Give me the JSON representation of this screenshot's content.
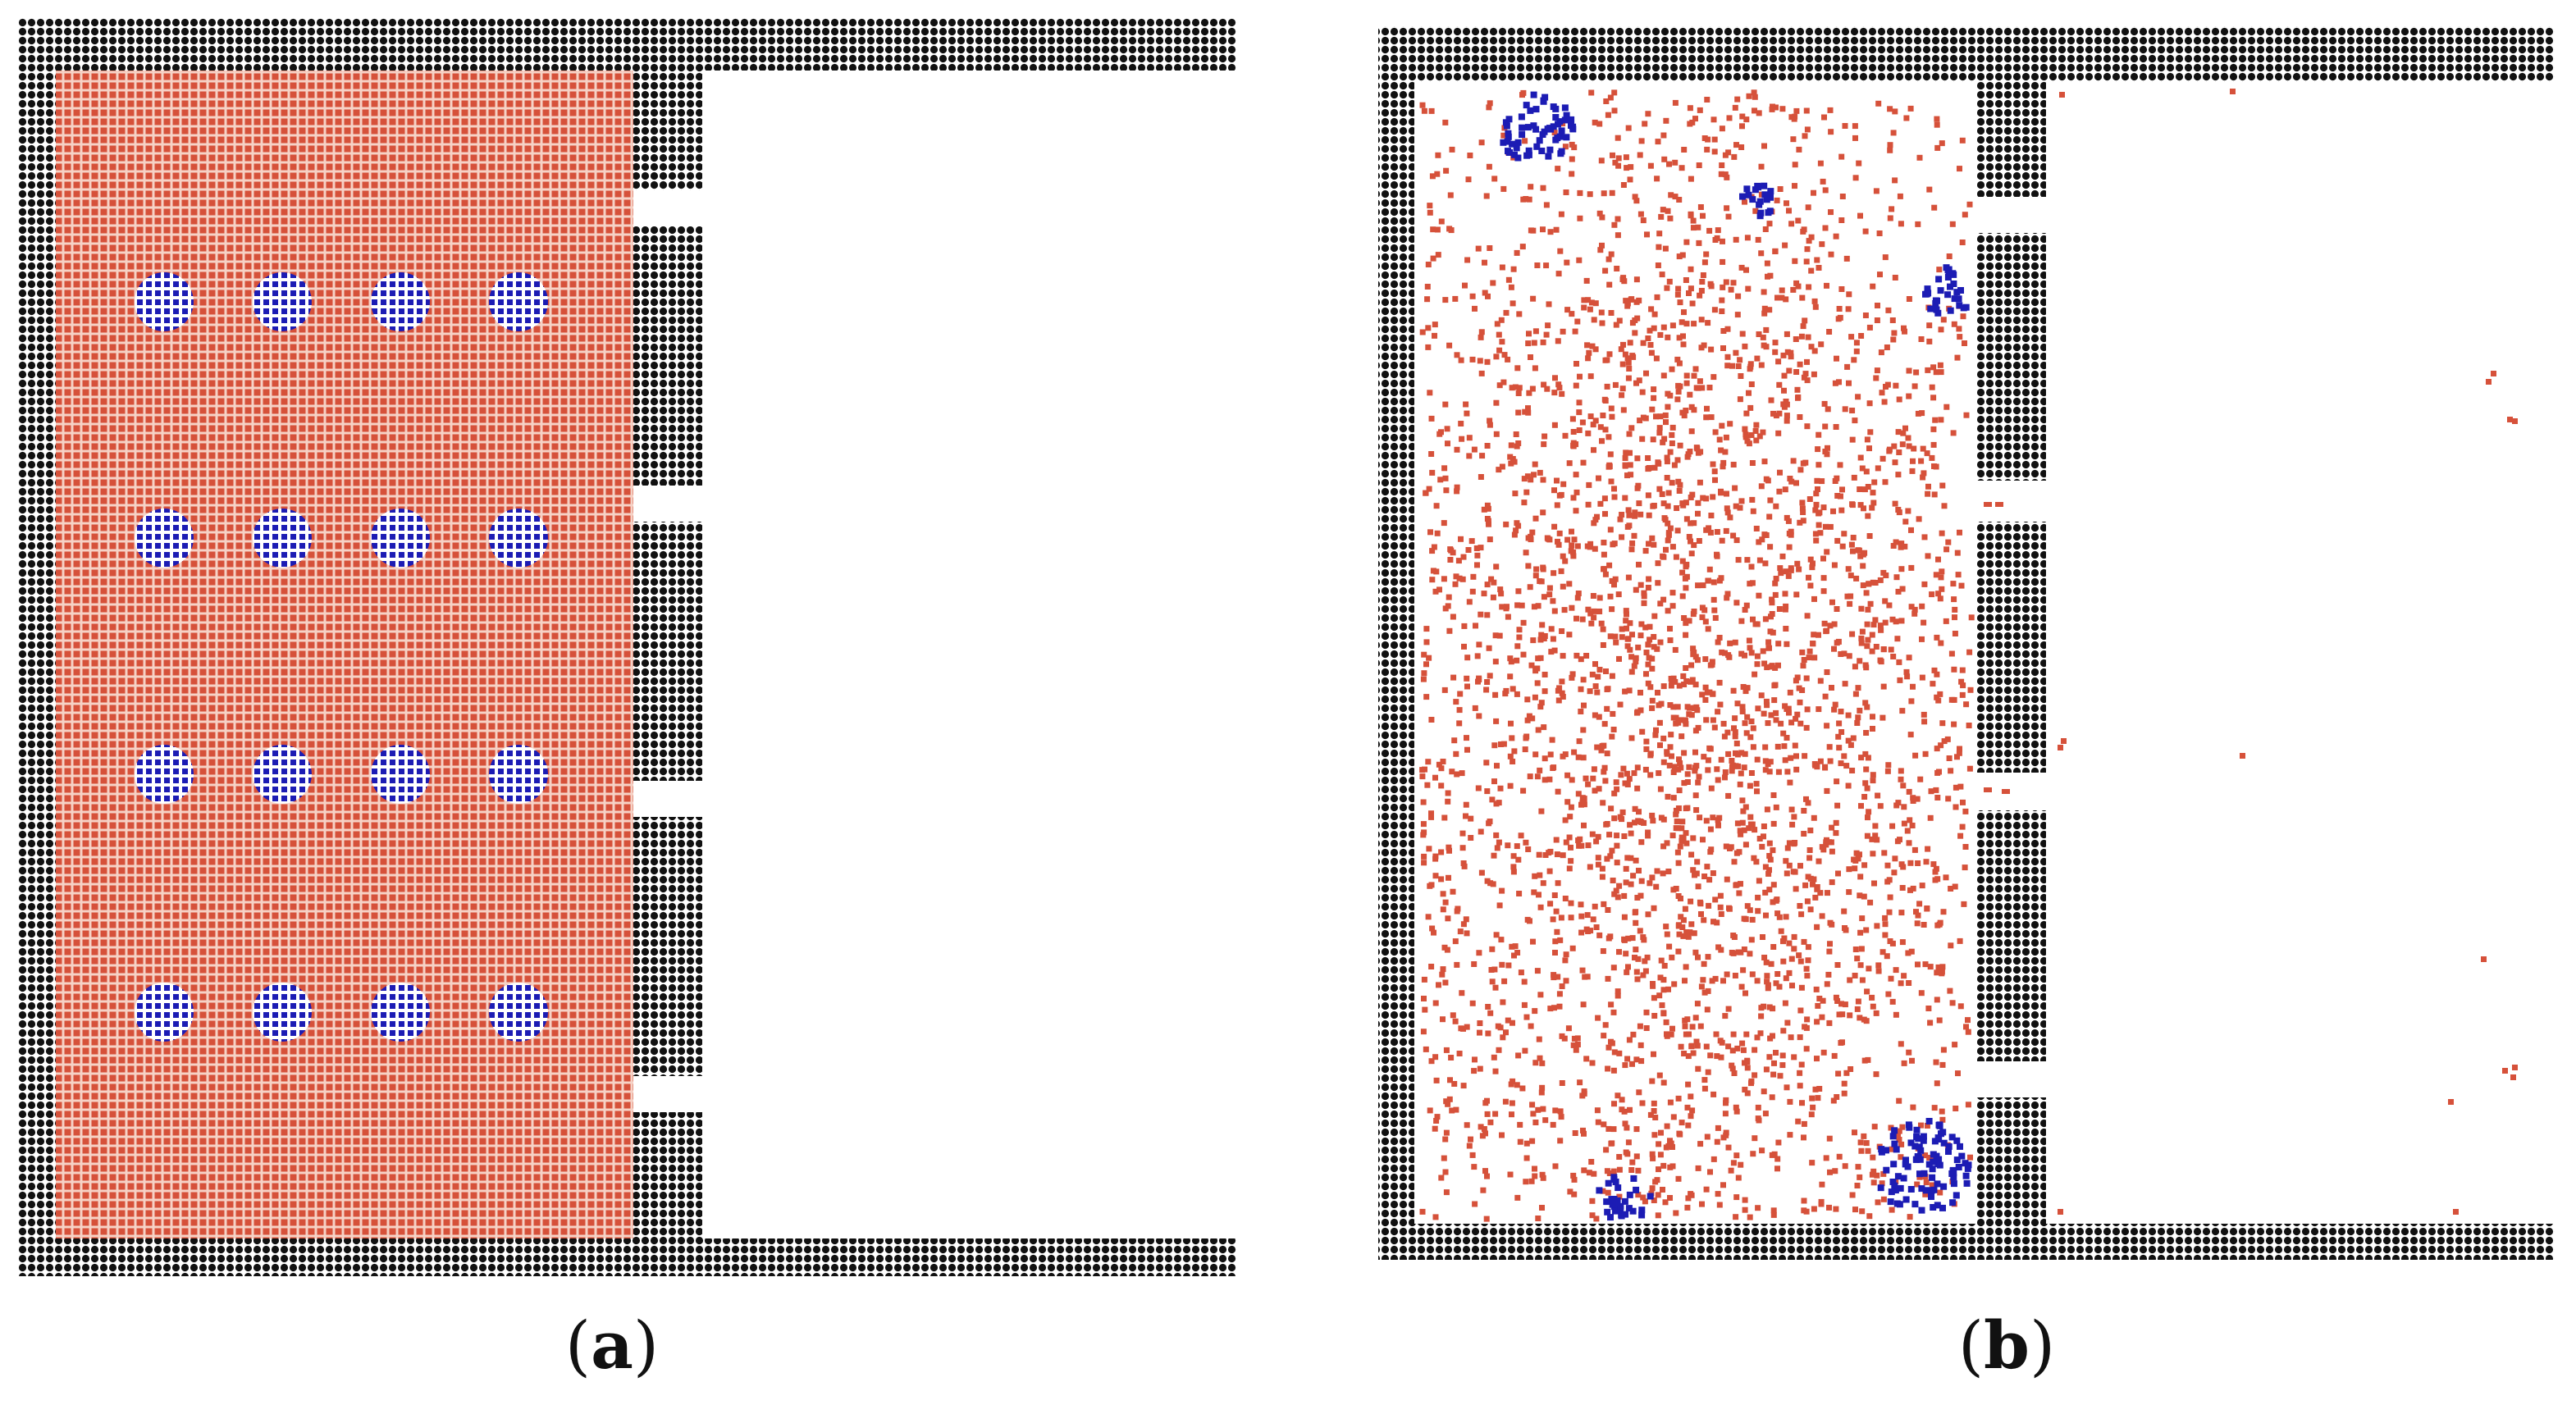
{
  "colors": {
    "wall": "#111111",
    "fluid": "#d6513a",
    "fluid_background": "#f4c3b3",
    "solid_particles": "#1c1cb4",
    "background": "#ffffff"
  },
  "panels": [
    {
      "id": "a",
      "label": "a",
      "open": "(",
      "close": ")",
      "state": "initial lattice arrangement",
      "solid_clusters": 16,
      "outlet_slots": 4
    },
    {
      "id": "b",
      "label": "b",
      "open": "(",
      "close": ")",
      "state": "fluid expanded, solid clusters drifted to walls",
      "solid_clusters": 5,
      "outlet_slots": 4
    }
  ]
}
